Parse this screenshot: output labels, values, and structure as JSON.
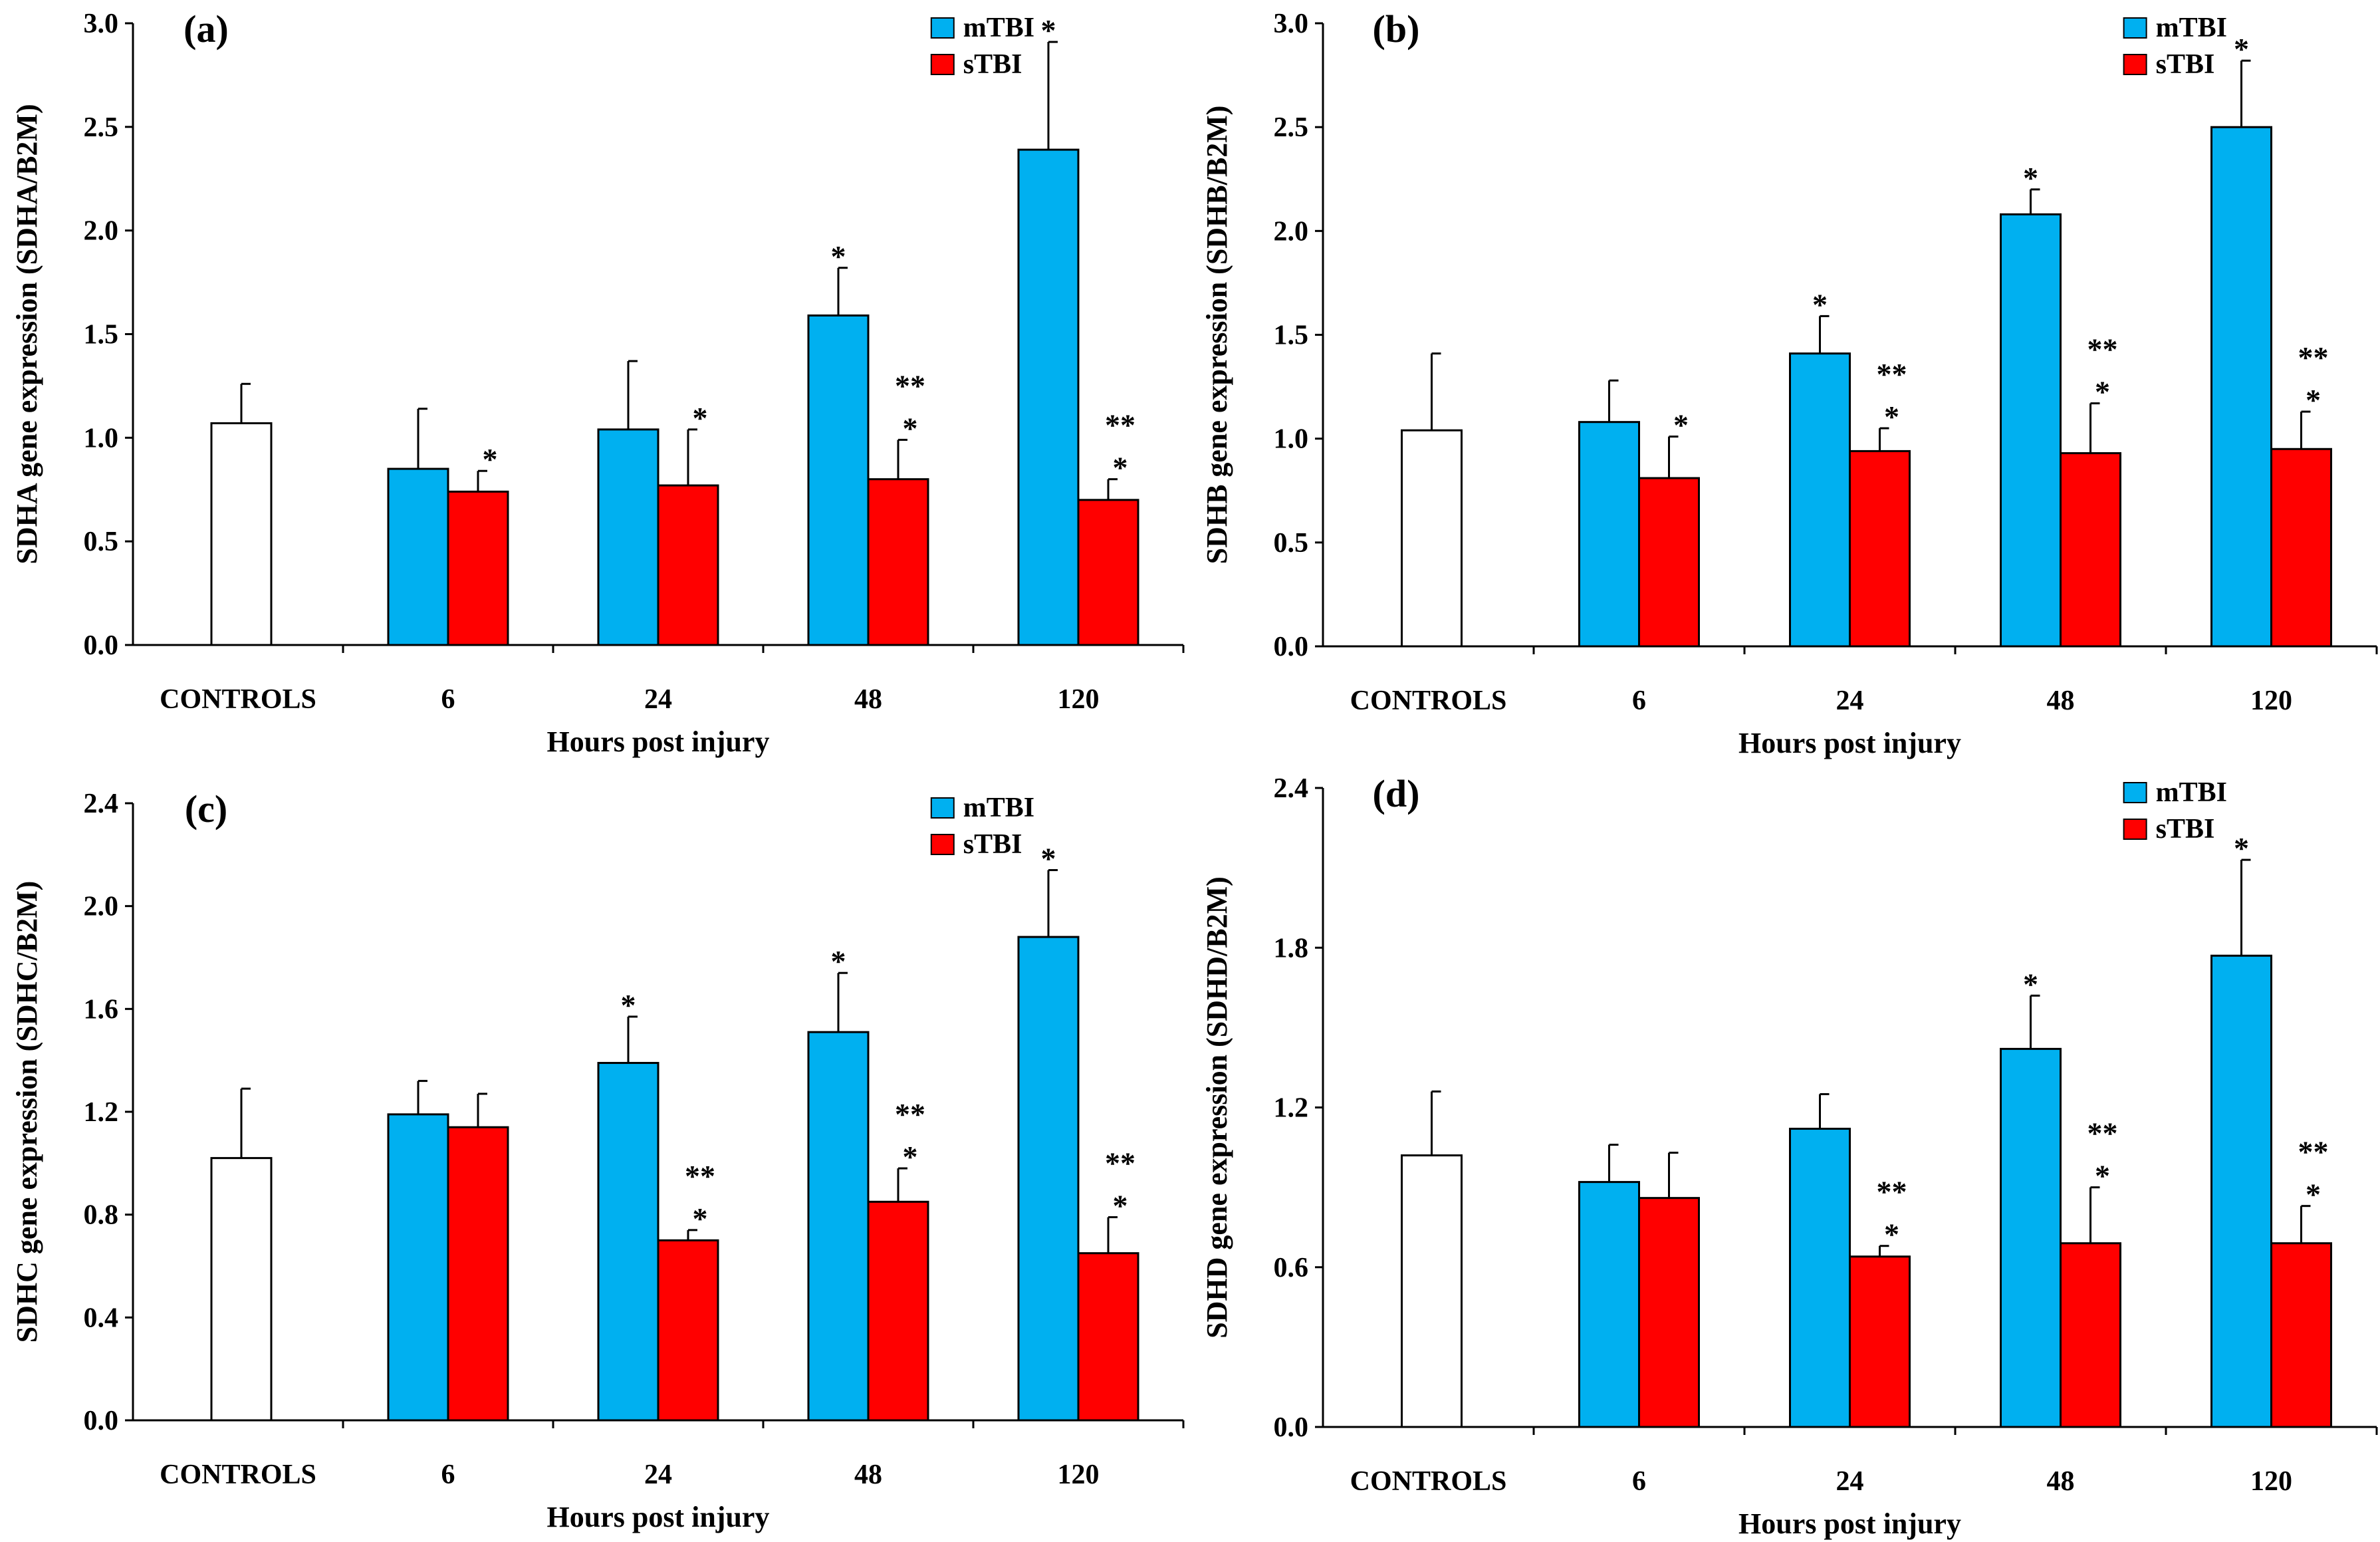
{
  "colors": {
    "control": "#ffffff",
    "mTBI": "#00b0f0",
    "sTBI": "#ff0000",
    "axis": "#000000"
  },
  "chart_data": [
    {
      "panel": "(a)",
      "type": "bar",
      "ylabel": "SDHA gene expression (SDHA/B2M)",
      "xlabel": "Hours post injury",
      "ylim": [
        0,
        3.0
      ],
      "ytick_step": 0.5,
      "ytick_decimals": 1,
      "control_label": "CONTROLS",
      "control": {
        "value": 1.07,
        "error": 0.19
      },
      "categories": [
        "6",
        "24",
        "48",
        "120"
      ],
      "legend": [
        "mTBI",
        "sTBI"
      ],
      "series": [
        {
          "name": "mTBI",
          "values": [
            0.85,
            1.04,
            1.59,
            2.39
          ],
          "errors": [
            0.29,
            0.33,
            0.23,
            0.52
          ],
          "annotations": [
            "",
            "",
            "*",
            "*"
          ]
        },
        {
          "name": "sTBI",
          "values": [
            0.74,
            0.77,
            0.8,
            0.7
          ],
          "errors": [
            0.1,
            0.27,
            0.19,
            0.1
          ],
          "annotations": [
            "*",
            "*",
            "**\n*",
            "**\n*"
          ]
        }
      ]
    },
    {
      "panel": "(b)",
      "type": "bar",
      "ylabel": "SDHB gene expression (SDHB/B2M)",
      "xlabel": "Hours post injury",
      "ylim": [
        0,
        3.0
      ],
      "ytick_step": 0.5,
      "ytick_decimals": 1,
      "control_label": "CONTROLS",
      "control": {
        "value": 1.04,
        "error": 0.37
      },
      "categories": [
        "6",
        "24",
        "48",
        "120"
      ],
      "legend": [
        "mTBI",
        "sTBI"
      ],
      "series": [
        {
          "name": "mTBI",
          "values": [
            1.08,
            1.41,
            2.08,
            2.5
          ],
          "errors": [
            0.2,
            0.18,
            0.12,
            0.32
          ],
          "annotations": [
            "",
            "*",
            "*",
            "*"
          ]
        },
        {
          "name": "sTBI",
          "values": [
            0.81,
            0.94,
            0.93,
            0.95
          ],
          "errors": [
            0.2,
            0.11,
            0.24,
            0.18
          ],
          "annotations": [
            "*",
            "**\n*",
            "**\n*",
            "**\n*"
          ]
        }
      ]
    },
    {
      "panel": "(c)",
      "type": "bar",
      "ylabel": "SDHC gene expression (SDHC/B2M)",
      "xlabel": "Hours post injury",
      "ylim": [
        0,
        2.4
      ],
      "ytick_step": 0.4,
      "ytick_decimals": 1,
      "control_label": "CONTROLS",
      "control": {
        "value": 1.02,
        "error": 0.27
      },
      "categories": [
        "6",
        "24",
        "48",
        "120"
      ],
      "legend": [
        "mTBI",
        "sTBI"
      ],
      "series": [
        {
          "name": "mTBI",
          "values": [
            1.19,
            1.39,
            1.51,
            1.88
          ],
          "errors": [
            0.13,
            0.18,
            0.23,
            0.26
          ],
          "annotations": [
            "",
            "*",
            "*",
            "*"
          ]
        },
        {
          "name": "sTBI",
          "values": [
            1.14,
            0.7,
            0.85,
            0.65
          ],
          "errors": [
            0.13,
            0.04,
            0.13,
            0.14
          ],
          "annotations": [
            "",
            "**\n*",
            "**\n*",
            "**\n*"
          ]
        }
      ]
    },
    {
      "panel": "(d)",
      "type": "bar",
      "ylabel": "SDHD gene expression (SDHD/B2M)",
      "xlabel": "Hours post injury",
      "ylim": [
        0,
        2.4
      ],
      "ytick_step": 0.6,
      "ytick_decimals": 1,
      "control_label": "CONTROLS",
      "control": {
        "value": 1.02,
        "error": 0.24
      },
      "categories": [
        "6",
        "24",
        "48",
        "120"
      ],
      "legend": [
        "mTBI",
        "sTBI"
      ],
      "series": [
        {
          "name": "mTBI",
          "values": [
            0.92,
            1.12,
            1.42,
            1.77
          ],
          "errors": [
            0.14,
            0.13,
            0.2,
            0.36
          ],
          "annotations": [
            "",
            "",
            "*",
            "*"
          ]
        },
        {
          "name": "sTBI",
          "values": [
            0.86,
            0.64,
            0.69,
            0.69
          ],
          "errors": [
            0.17,
            0.04,
            0.21,
            0.14
          ],
          "annotations": [
            "",
            "**\n*",
            "**\n*",
            "**\n*"
          ]
        }
      ]
    }
  ]
}
